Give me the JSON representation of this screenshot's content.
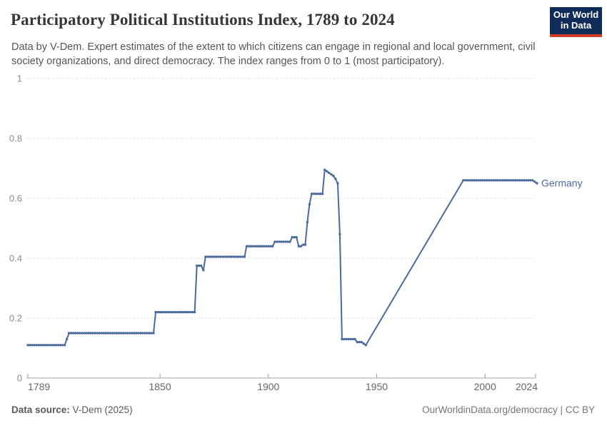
{
  "header": {
    "title": "Participatory Political Institutions Index, 1789 to 2024",
    "subtitle": "Data by V-Dem. Expert estimates of the extent to which citizens can engage in regional and local government, civil society organizations, and direct democracy. The index ranges from 0 to 1 (most participatory).",
    "logo": {
      "line1": "Our World",
      "line2": "in Data",
      "bg_color": "#102d59",
      "accent_color": "#d23a2a"
    }
  },
  "chart_data": {
    "type": "line",
    "title": "Participatory Political Institutions Index, 1789 to 2024",
    "xlabel": "",
    "ylabel": "",
    "xlim": [
      1789,
      2024
    ],
    "ylim": [
      0,
      1
    ],
    "x_ticks": [
      1789,
      1850,
      1900,
      1950,
      2000,
      2024
    ],
    "y_ticks": [
      0,
      0.2,
      0.4,
      0.6,
      0.8,
      1
    ],
    "grid": "horizontal-dashed",
    "legend_position": "end-of-line",
    "note": "no data between 1945 and 1990; line connects those points directly",
    "series": [
      {
        "name": "Germany",
        "color": "#4c6a9c",
        "runs": [
          {
            "start": 1789,
            "end": 1806,
            "value": 0.11
          },
          {
            "start": 1807,
            "end": 1807,
            "value": 0.13
          },
          {
            "start": 1808,
            "end": 1847,
            "value": 0.15
          },
          {
            "start": 1848,
            "end": 1866,
            "value": 0.22
          },
          {
            "start": 1867,
            "end": 1869,
            "value": 0.375
          },
          {
            "start": 1870,
            "end": 1870,
            "value": 0.36
          },
          {
            "start": 1871,
            "end": 1889,
            "value": 0.405
          },
          {
            "start": 1890,
            "end": 1902,
            "value": 0.44
          },
          {
            "start": 1903,
            "end": 1910,
            "value": 0.455
          },
          {
            "start": 1911,
            "end": 1913,
            "value": 0.47
          },
          {
            "start": 1914,
            "end": 1915,
            "value": 0.44
          },
          {
            "start": 1916,
            "end": 1917,
            "value": 0.445
          },
          {
            "start": 1918,
            "end": 1918,
            "value": 0.52
          },
          {
            "start": 1919,
            "end": 1919,
            "value": 0.58
          },
          {
            "start": 1920,
            "end": 1925,
            "value": 0.615
          },
          {
            "start": 1926,
            "end": 1926,
            "value": 0.695
          },
          {
            "start": 1927,
            "end": 1927,
            "value": 0.69
          },
          {
            "start": 1928,
            "end": 1928,
            "value": 0.685
          },
          {
            "start": 1929,
            "end": 1929,
            "value": 0.68
          },
          {
            "start": 1930,
            "end": 1930,
            "value": 0.675
          },
          {
            "start": 1931,
            "end": 1931,
            "value": 0.665
          },
          {
            "start": 1932,
            "end": 1932,
            "value": 0.65
          },
          {
            "start": 1933,
            "end": 1933,
            "value": 0.48
          },
          {
            "start": 1934,
            "end": 1940,
            "value": 0.13
          },
          {
            "start": 1941,
            "end": 1943,
            "value": 0.12
          },
          {
            "start": 1944,
            "end": 1944,
            "value": 0.115
          },
          {
            "start": 1945,
            "end": 1945,
            "value": 0.11
          },
          {
            "start": 1990,
            "end": 2022,
            "value": 0.66
          },
          {
            "start": 2023,
            "end": 2023,
            "value": 0.655
          },
          {
            "start": 2024,
            "end": 2024,
            "value": 0.65
          }
        ]
      }
    ]
  },
  "footer": {
    "source_label": "Data source:",
    "source_value": " V-Dem (2025)",
    "credit": "OurWorldinData.org/democracy | CC BY"
  }
}
